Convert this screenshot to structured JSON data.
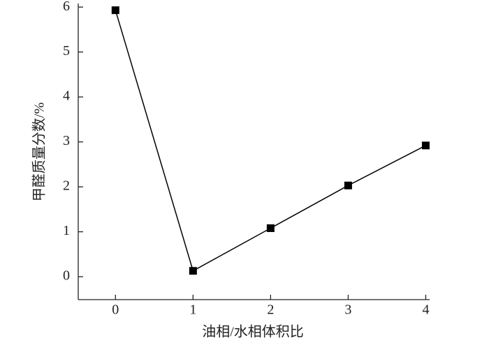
{
  "chart_data": {
    "type": "line",
    "xlabel": "油相/水相体积比",
    "ylabel": "甲醛质量分数/%",
    "x": [
      0,
      1,
      2,
      3,
      4
    ],
    "series": [
      {
        "color": "#000000",
        "values": [
          5.93,
          0.13,
          1.08,
          2.03,
          2.92
        ]
      }
    ],
    "xlim": [
      -0.48,
      4.05
    ],
    "ylim": [
      -0.51,
      6.08
    ],
    "xticks": [
      0,
      1,
      2,
      3,
      4
    ],
    "yticks": [
      0,
      1,
      2,
      3,
      4,
      5,
      6
    ]
  }
}
